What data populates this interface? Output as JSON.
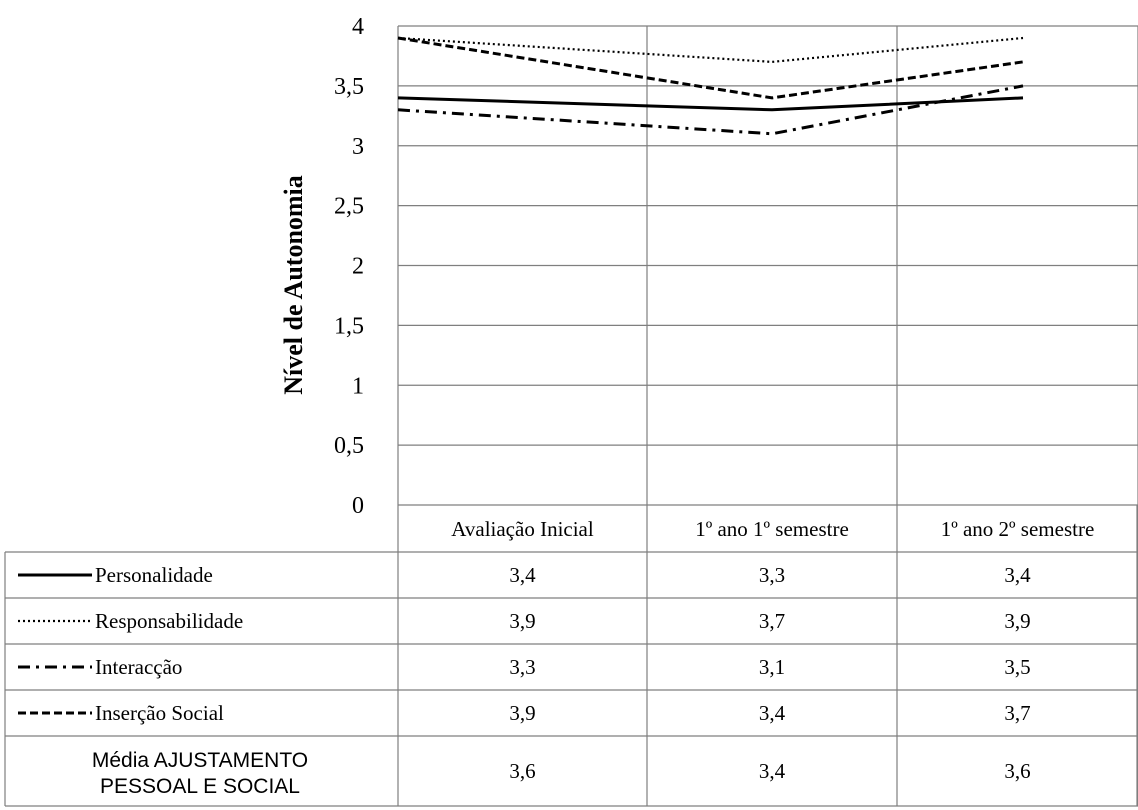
{
  "chart_data": {
    "type": "line",
    "ylabel": "Nível de Autonomia",
    "ylim": [
      0,
      4
    ],
    "yticks": [
      "0",
      "0,5",
      "1",
      "1,5",
      "2",
      "2,5",
      "3",
      "3,5",
      "4"
    ],
    "categories": [
      "Avaliação Inicial",
      "1º ano 1º semestre",
      "1º ano 2º semestre"
    ],
    "grid": true,
    "legend": "data-table-below",
    "series": [
      {
        "name": "Personalidade",
        "style": "solid",
        "values": [
          3.4,
          3.3,
          3.4
        ],
        "labels": [
          "3,4",
          "3,3",
          "3,4"
        ]
      },
      {
        "name": "Responsabilidade",
        "style": "dotted",
        "values": [
          3.9,
          3.7,
          3.9
        ],
        "labels": [
          "3,9",
          "3,7",
          "3,9"
        ]
      },
      {
        "name": "Interacção",
        "style": "dashdot",
        "values": [
          3.3,
          3.1,
          3.5
        ],
        "labels": [
          "3,3",
          "3,1",
          "3,5"
        ]
      },
      {
        "name": "Inserção Social",
        "style": "dashed",
        "values": [
          3.9,
          3.4,
          3.7
        ],
        "labels": [
          "3,9",
          "3,4",
          "3,7"
        ]
      }
    ],
    "summary_row": {
      "name": [
        "Média AJUSTAMENTO",
        "PESSOAL E SOCIAL"
      ],
      "values": [
        "3,6",
        "3,4",
        "3,6"
      ]
    },
    "colors": {
      "line": "#000000",
      "grid": "#7f7f7f"
    }
  }
}
